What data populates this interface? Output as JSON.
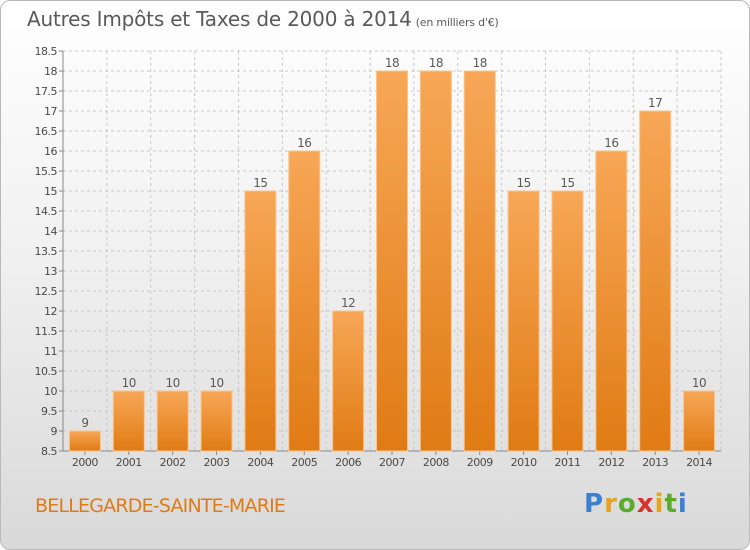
{
  "title": "Autres Impôts et Taxes de 2000 à 2014",
  "title_unit": "(en milliers d'€)",
  "commune": "BELLEGARDE-SAINTE-MARIE",
  "logo": {
    "letters": [
      "P",
      "r",
      "o",
      "x",
      "i",
      "t",
      "i"
    ],
    "colors": [
      "#3a7fd0",
      "#e8a21c",
      "#5cab2e",
      "#d6332c",
      "#e8a21c",
      "#5cab2e",
      "#3a7fd0"
    ]
  },
  "colors": {
    "bar_light": "#f7a757",
    "bar_dark": "#e07b14",
    "bar_edge": "#fbc48c",
    "grid": "#c8c8c8"
  },
  "chart_data": {
    "type": "bar",
    "title": "Autres Impôts et Taxes de 2000 à 2014",
    "categories": [
      "2000",
      "2001",
      "2002",
      "2003",
      "2004",
      "2005",
      "2006",
      "2007",
      "2008",
      "2009",
      "2010",
      "2011",
      "2012",
      "2013",
      "2014"
    ],
    "values": [
      9,
      10,
      10,
      10,
      15,
      16,
      12,
      18,
      18,
      18,
      15,
      15,
      16,
      17,
      10
    ],
    "value_labels": [
      "9",
      "10",
      "10",
      "10",
      "15",
      "16",
      "12",
      "18",
      "18",
      "18",
      "15",
      "15",
      "16",
      "17",
      "10"
    ],
    "ylim": [
      8.5,
      18.5
    ],
    "yticks": [
      8.5,
      9,
      9.5,
      10,
      10.5,
      11,
      11.5,
      12,
      12.5,
      13,
      13.5,
      14,
      14.5,
      15,
      15.5,
      16,
      16.5,
      17,
      17.5,
      18,
      18.5
    ],
    "ytick_labels": [
      "8.5",
      "9",
      "9.5",
      "10",
      "10.5",
      "11",
      "11.5",
      "12",
      "12.5",
      "13",
      "13.5",
      "14",
      "14.5",
      "15",
      "15.5",
      "16",
      "16.5",
      "17",
      "17.5",
      "18",
      "18.5"
    ],
    "grid": true,
    "legend": "none"
  }
}
